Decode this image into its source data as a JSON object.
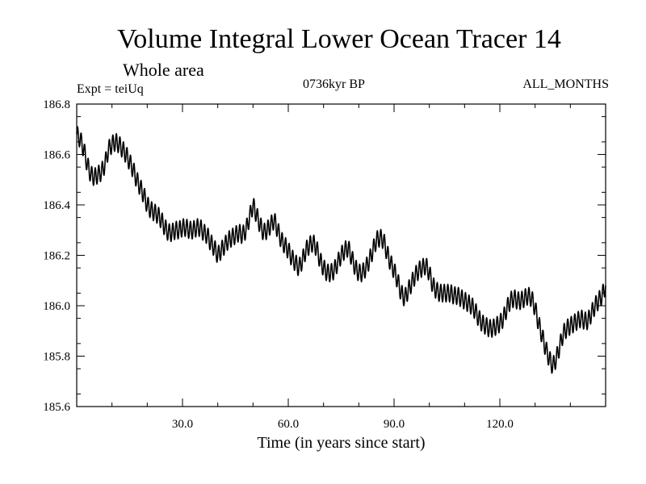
{
  "chart_data": {
    "type": "line",
    "title": "Volume Integral Lower Ocean Tracer 14",
    "subtitle": "Whole area",
    "left_label": "Expt = teiUq",
    "center_label": "0736kyr BP",
    "right_label": "ALL_MONTHS",
    "xlabel": "Time (in years since start)",
    "ylabel": "",
    "xlim": [
      0,
      150
    ],
    "ylim": [
      185.6,
      186.8
    ],
    "x_ticks": [
      30,
      60,
      90,
      120
    ],
    "x_tick_labels": [
      "30.0",
      "60.0",
      "90.0",
      "120.0"
    ],
    "y_ticks": [
      185.6,
      185.8,
      186.0,
      186.2,
      186.4,
      186.6,
      186.8
    ],
    "y_tick_labels": [
      "185.6",
      "185.8",
      "186.0",
      "186.2",
      "186.4",
      "186.6",
      "186.8"
    ],
    "seasonal_amplitude": 0.035,
    "series": [
      {
        "name": "Tracer 14",
        "x": [
          0,
          1,
          2,
          3,
          4,
          5,
          6,
          7,
          8,
          9,
          10,
          11,
          12,
          13,
          14,
          15,
          16,
          17,
          18,
          19,
          20,
          21,
          22,
          23,
          24,
          25,
          26,
          27,
          28,
          29,
          30,
          31,
          32,
          33,
          34,
          35,
          36,
          37,
          38,
          39,
          40,
          41,
          42,
          43,
          44,
          45,
          46,
          47,
          48,
          49,
          50,
          51,
          52,
          53,
          54,
          55,
          56,
          57,
          58,
          59,
          60,
          61,
          62,
          63,
          64,
          65,
          66,
          67,
          68,
          69,
          70,
          71,
          72,
          73,
          74,
          75,
          76,
          77,
          78,
          79,
          80,
          81,
          82,
          83,
          84,
          85,
          86,
          87,
          88,
          89,
          90,
          91,
          92,
          93,
          94,
          95,
          96,
          97,
          98,
          99,
          100,
          101,
          102,
          103,
          104,
          105,
          106,
          107,
          108,
          109,
          110,
          111,
          112,
          113,
          114,
          115,
          116,
          117,
          118,
          119,
          120,
          121,
          122,
          123,
          124,
          125,
          126,
          127,
          128,
          129,
          130,
          131,
          132,
          133,
          134,
          135,
          136,
          137,
          138,
          139,
          140,
          141,
          142,
          143,
          144,
          145,
          146,
          147,
          148,
          149,
          150
        ],
        "values": [
          186.68,
          186.66,
          186.62,
          186.56,
          186.52,
          186.51,
          186.52,
          186.53,
          186.56,
          186.62,
          186.64,
          186.65,
          186.64,
          186.62,
          186.6,
          186.57,
          186.54,
          186.5,
          186.47,
          186.44,
          186.4,
          186.38,
          186.37,
          186.36,
          186.34,
          186.31,
          186.29,
          186.29,
          186.3,
          186.3,
          186.31,
          186.31,
          186.3,
          186.3,
          186.31,
          186.31,
          186.29,
          186.28,
          186.25,
          186.23,
          186.2,
          186.22,
          186.24,
          186.26,
          186.27,
          186.28,
          186.29,
          186.28,
          186.3,
          186.35,
          186.4,
          186.36,
          186.32,
          186.29,
          186.3,
          186.32,
          186.34,
          186.3,
          186.26,
          186.24,
          186.22,
          186.19,
          186.17,
          186.15,
          186.18,
          186.22,
          186.24,
          186.25,
          186.23,
          186.18,
          186.15,
          186.13,
          186.13,
          186.14,
          186.17,
          186.2,
          186.22,
          186.23,
          186.19,
          186.15,
          186.13,
          186.13,
          186.15,
          186.18,
          186.22,
          186.26,
          186.27,
          186.26,
          186.21,
          186.17,
          186.14,
          186.1,
          186.05,
          186.03,
          186.06,
          186.09,
          186.12,
          186.14,
          186.15,
          186.16,
          186.13,
          186.08,
          186.06,
          186.05,
          186.05,
          186.05,
          186.05,
          186.04,
          186.04,
          186.03,
          186.02,
          186.01,
          186.0,
          185.98,
          185.95,
          185.93,
          185.92,
          185.91,
          185.91,
          185.92,
          185.93,
          185.95,
          185.99,
          186.02,
          186.03,
          186.02,
          186.02,
          186.03,
          186.04,
          186.03,
          185.99,
          185.93,
          185.88,
          185.83,
          185.79,
          185.76,
          185.79,
          185.84,
          185.89,
          185.91,
          185.92,
          185.93,
          185.94,
          185.95,
          185.94,
          185.94,
          185.97,
          186.0,
          186.02,
          186.04,
          186.08
        ]
      }
    ]
  }
}
